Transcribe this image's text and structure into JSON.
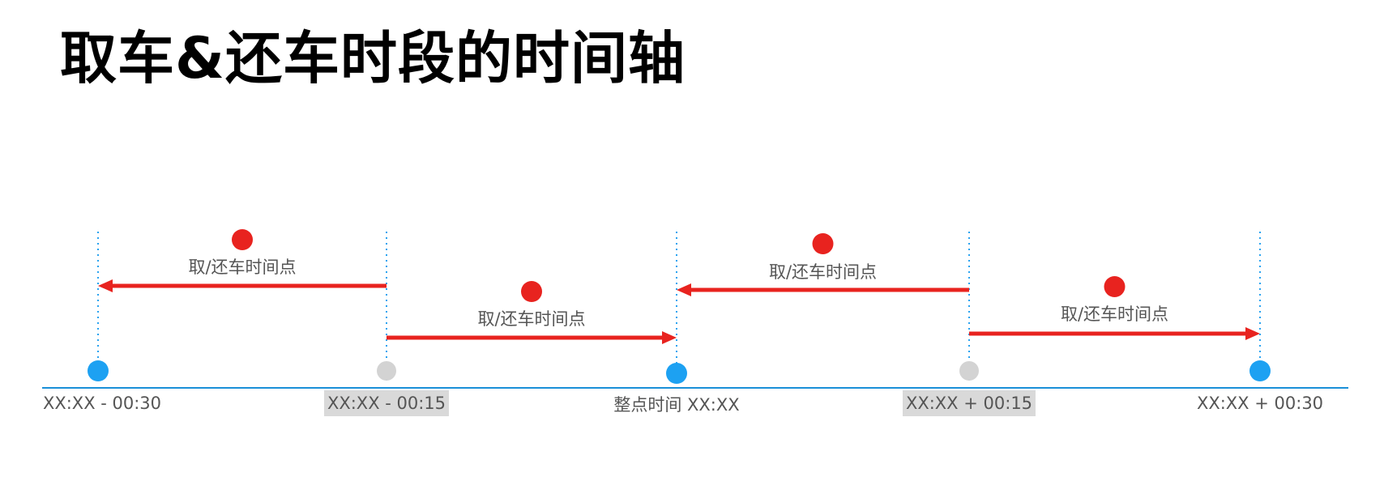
{
  "title": "取车&还车时段的时间轴",
  "colors": {
    "axis": "#1a8fd8",
    "guide": "#2aa3f0",
    "major_dot": "#1da1f2",
    "minor_dot": "#d3d3d3",
    "arrow": "#e8231f",
    "marker": "#e8231f",
    "highlight_bg": "#d9d9d9"
  },
  "ticks": [
    {
      "label": "XX:XX - 00:30",
      "kind": "major",
      "highlight": false
    },
    {
      "label": "XX:XX - 00:15",
      "kind": "minor",
      "highlight": true
    },
    {
      "label": "整点时间 XX:XX",
      "kind": "major",
      "highlight": false
    },
    {
      "label": "XX:XX + 00:15",
      "kind": "minor",
      "highlight": true
    },
    {
      "label": "XX:XX + 00:30",
      "kind": "major",
      "highlight": false
    }
  ],
  "segments": [
    {
      "from_tick": 1,
      "to_tick": 0,
      "label": "取/还车时间点",
      "direction": "left"
    },
    {
      "from_tick": 1,
      "to_tick": 2,
      "label": "取/还车时间点",
      "direction": "right"
    },
    {
      "from_tick": 3,
      "to_tick": 2,
      "label": "取/还车时间点",
      "direction": "left"
    },
    {
      "from_tick": 3,
      "to_tick": 4,
      "label": "取/还车时间点",
      "direction": "right"
    }
  ]
}
